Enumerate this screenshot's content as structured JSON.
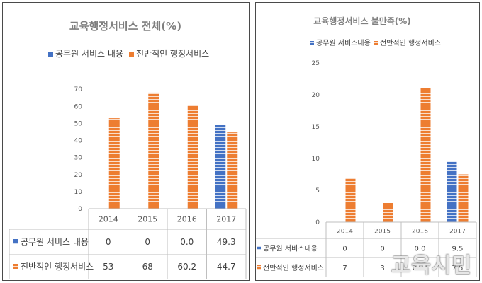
{
  "colors": {
    "blue": "#4472C4",
    "orange": "#ED7D31",
    "stripe": "#ffffff",
    "grid": "#bfbfbf",
    "axis_text": "#595959",
    "title_text": "#7f7f7f"
  },
  "chart_data": [
    {
      "type": "bar",
      "title": "교육행정서비스 전체(%)",
      "categories": [
        "2014",
        "2015",
        "2016",
        "2017"
      ],
      "series": [
        {
          "name": "공무원 서비스 내용",
          "color": "#4472C4",
          "values": [
            0,
            0,
            0.0,
            49.3
          ],
          "labels": [
            "0",
            "0",
            "0.0",
            "49.3"
          ]
        },
        {
          "name": "전반적인 행정서비스",
          "color": "#ED7D31",
          "values": [
            53,
            68,
            60.2,
            44.7
          ],
          "labels": [
            "53",
            "68",
            "60.2",
            "44.7"
          ]
        }
      ],
      "ylim": [
        0,
        80
      ],
      "yticks": [
        "0",
        "10",
        "20",
        "30",
        "40",
        "50",
        "60",
        "70"
      ],
      "legend": "top",
      "data_table": true
    },
    {
      "type": "bar",
      "title": "교육행정서비스 불만족(%)",
      "categories": [
        "2014",
        "2015",
        "2016",
        "2017"
      ],
      "series": [
        {
          "name": "공무원 서비스내용",
          "color": "#4472C4",
          "values": [
            0,
            0,
            0.0,
            9.5
          ],
          "labels": [
            "0",
            "0",
            "0.0",
            "9.5"
          ]
        },
        {
          "name": "전반적인 행정서비스",
          "color": "#ED7D31",
          "values": [
            7,
            3,
            21.0,
            7.5
          ],
          "labels": [
            "7",
            "3",
            "21.0",
            "7.5"
          ]
        }
      ],
      "ylim": [
        0,
        25
      ],
      "yticks": [
        "0",
        "5",
        "10",
        "15",
        "20",
        "25"
      ],
      "legend": "top",
      "data_table": true
    }
  ],
  "watermark": "교육시민"
}
